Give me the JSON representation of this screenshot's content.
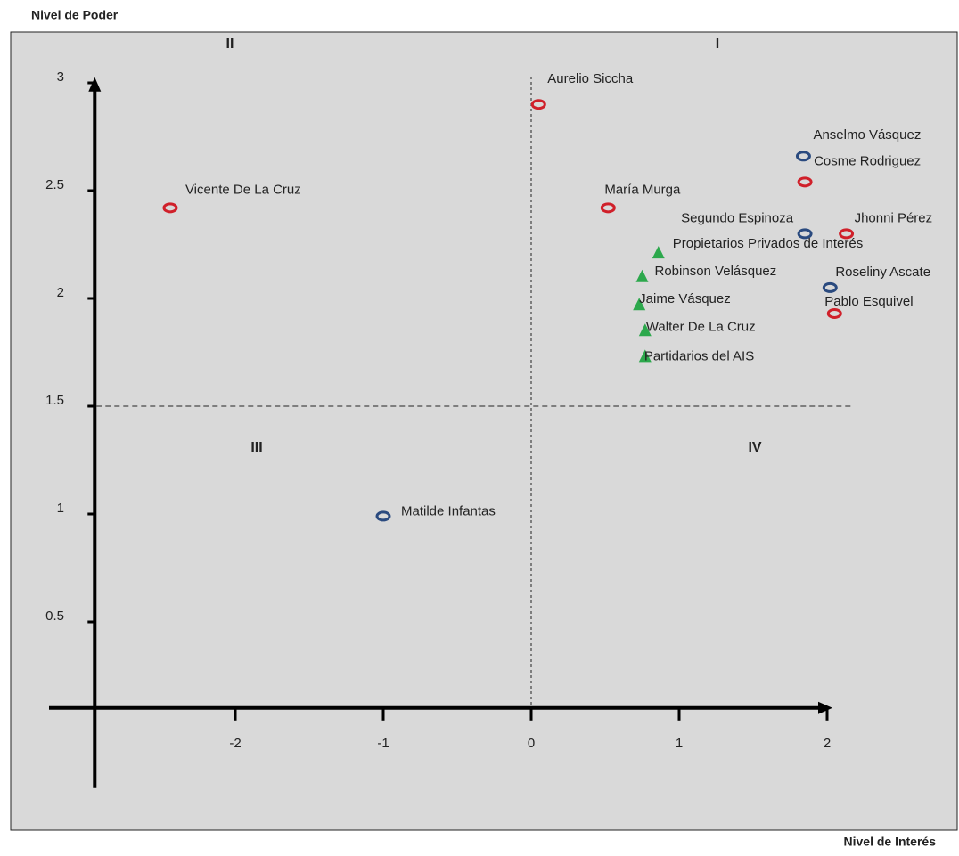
{
  "chart_data": {
    "type": "scatter",
    "ylabel": "Nivel de Poder",
    "xlabel": "Nivel de Interés",
    "quadrants": [
      "I",
      "II",
      "III",
      "IV"
    ],
    "xlim": [
      -2.95,
      2.95
    ],
    "ylim": [
      0.1,
      3.1
    ],
    "xticks": [
      -2,
      -1,
      0,
      1,
      2
    ],
    "yticks": [
      0.5,
      1,
      1.5,
      2,
      2.5,
      3
    ],
    "dividers": {
      "x": 0,
      "y": 1.5
    },
    "series": [
      {
        "color": "#d0202a",
        "marker": "ring",
        "labels": [
          "Aurelio Siccha",
          "Vicente De La Cruz",
          "María Murga",
          "Cosme Rodriguez",
          "Jhonni Pérez",
          "Pablo Esquivel"
        ],
        "x": [
          0.05,
          -2.44,
          0.52,
          1.85,
          2.13,
          2.05
        ],
        "y": [
          2.9,
          2.42,
          2.42,
          2.54,
          2.3,
          1.93
        ]
      },
      {
        "color": "#2a4a7f",
        "marker": "ring",
        "labels": [
          "Anselmo Vásquez",
          "Segundo Espinoza",
          "Roseliny Ascate",
          "Matilde Infantas"
        ],
        "x": [
          1.84,
          1.85,
          2.02,
          -1.0
        ],
        "y": [
          2.66,
          2.3,
          2.05,
          0.99
        ]
      },
      {
        "color": "#2ca84c",
        "marker": "triangle",
        "labels": [
          "Propietarios Privados de Interés",
          "Robinson Velásquez",
          "Jaime Vásquez",
          "Walter De La Cruz",
          "Partidarios del AIS"
        ],
        "x": [
          0.86,
          0.75,
          0.73,
          0.77,
          0.77
        ],
        "y": [
          2.21,
          2.1,
          1.97,
          1.85,
          1.73
        ]
      }
    ]
  }
}
